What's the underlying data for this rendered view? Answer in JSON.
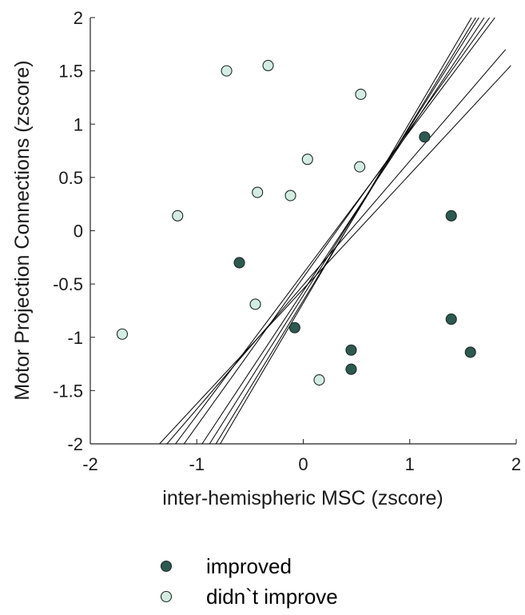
{
  "chart_data": {
    "type": "scatter",
    "title": "",
    "xlabel": "inter-hemispheric MSC (zscore)",
    "ylabel": "Motor Projection Connections (zscore)",
    "xlim": [
      -2,
      2
    ],
    "ylim": [
      -2,
      2
    ],
    "x_ticks": [
      -2,
      -1,
      0,
      1,
      2
    ],
    "x_tick_labels": [
      "-2",
      "-1",
      "0",
      "1",
      "2"
    ],
    "y_ticks": [
      2,
      1.5,
      1,
      0.5,
      0,
      -0.5,
      -1,
      -1.5,
      -2
    ],
    "y_tick_labels": [
      "2",
      "1.5",
      "1",
      "0.5",
      "0",
      "-0.5",
      "-1",
      "-1.5",
      "-2"
    ],
    "grid": false,
    "legend_position": "bottom",
    "series": [
      {
        "name": "improved",
        "color": "#2d5a50",
        "points": [
          {
            "x": 1.14,
            "y": 0.88
          },
          {
            "x": 1.39,
            "y": 0.14
          },
          {
            "x": -0.6,
            "y": -0.3
          },
          {
            "x": -0.08,
            "y": -0.91
          },
          {
            "x": 0.45,
            "y": -1.12
          },
          {
            "x": 0.45,
            "y": -1.3
          },
          {
            "x": 1.39,
            "y": -0.83
          },
          {
            "x": 1.57,
            "y": -1.14
          }
        ]
      },
      {
        "name": "didn`t improve",
        "color": "#d4ece2",
        "points": [
          {
            "x": -0.72,
            "y": 1.5
          },
          {
            "x": -0.33,
            "y": 1.55
          },
          {
            "x": 0.54,
            "y": 1.28
          },
          {
            "x": 0.04,
            "y": 0.67
          },
          {
            "x": 0.53,
            "y": 0.6
          },
          {
            "x": -0.43,
            "y": 0.36
          },
          {
            "x": -0.12,
            "y": 0.33
          },
          {
            "x": -1.18,
            "y": 0.14
          },
          {
            "x": -0.45,
            "y": -0.69
          },
          {
            "x": -1.7,
            "y": -0.97
          },
          {
            "x": 0.15,
            "y": -1.4
          }
        ]
      }
    ],
    "fit_lines": [
      {
        "x1": -1.35,
        "y1": -2.0,
        "x2": 1.95,
        "y2": 1.55
      },
      {
        "x1": -1.28,
        "y1": -2.0,
        "x2": 1.9,
        "y2": 1.7
      },
      {
        "x1": -1.2,
        "y1": -2.0,
        "x2": 1.8,
        "y2": 2.0
      },
      {
        "x1": -1.12,
        "y1": -2.0,
        "x2": 1.75,
        "y2": 2.0
      },
      {
        "x1": -0.95,
        "y1": -2.0,
        "x2": 1.7,
        "y2": 2.0
      },
      {
        "x1": -0.88,
        "y1": -2.0,
        "x2": 1.65,
        "y2": 2.0
      },
      {
        "x1": -0.82,
        "y1": -2.0,
        "x2": 1.62,
        "y2": 2.0
      },
      {
        "x1": -0.78,
        "y1": -2.0,
        "x2": 1.58,
        "y2": 2.0
      }
    ],
    "line_color": "#000000"
  }
}
